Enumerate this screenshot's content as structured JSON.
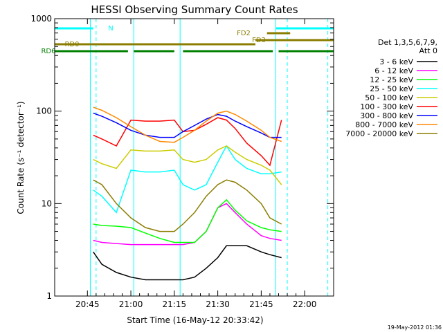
{
  "chart_data": {
    "type": "line",
    "title": "HESSI Observing Summary Count Rates",
    "xlabel": "Start Time (16-May-12 20:33:42)",
    "ylabel": "Count Rate (s⁻¹ detector⁻¹)",
    "y_scale": "log",
    "ylim": [
      1,
      1000
    ],
    "xlim": [
      "20:33:42",
      "22:10:00"
    ],
    "x_ticks": [
      "20:45",
      "21:00",
      "21:15",
      "21:30",
      "21:45",
      "22:00"
    ],
    "y_ticks": [
      "1",
      "10",
      "100",
      "1000"
    ],
    "legend": {
      "title_lines": [
        "Det 1,3,5,6,7,9,",
        "Att 0"
      ],
      "placement": "right"
    },
    "series": [
      {
        "name": "3 - 6 keV",
        "color": "#000000",
        "x": [
          "20:47",
          "20:50",
          "20:55",
          "21:00",
          "21:05",
          "21:10",
          "21:15",
          "21:18",
          "21:22",
          "21:26",
          "21:30",
          "21:33",
          "21:36",
          "21:40",
          "21:45",
          "21:48",
          "21:52"
        ],
        "values": [
          3.0,
          2.2,
          1.8,
          1.6,
          1.5,
          1.5,
          1.5,
          1.5,
          1.6,
          2.0,
          2.6,
          3.5,
          3.5,
          3.5,
          3.0,
          2.8,
          2.6
        ]
      },
      {
        "name": "6 - 12 keV",
        "color": "#ff00ff",
        "x": [
          "20:47",
          "20:50",
          "20:55",
          "21:00",
          "21:05",
          "21:10",
          "21:15",
          "21:18",
          "21:22",
          "21:26",
          "21:30",
          "21:33",
          "21:36",
          "21:40",
          "21:45",
          "21:48",
          "21:52"
        ],
        "values": [
          4.0,
          3.8,
          3.7,
          3.6,
          3.6,
          3.6,
          3.6,
          3.6,
          3.8,
          5.0,
          9.0,
          10.0,
          8.0,
          6.0,
          4.5,
          4.2,
          4.0
        ]
      },
      {
        "name": "12 - 25 keV",
        "color": "#00ff00",
        "x": [
          "20:47",
          "20:50",
          "20:55",
          "21:00",
          "21:05",
          "21:10",
          "21:15",
          "21:18",
          "21:22",
          "21:26",
          "21:30",
          "21:33",
          "21:36",
          "21:40",
          "21:45",
          "21:48",
          "21:52"
        ],
        "values": [
          6.0,
          5.8,
          5.7,
          5.5,
          4.8,
          4.2,
          3.8,
          3.8,
          3.8,
          5.0,
          9.0,
          11.0,
          8.5,
          6.5,
          5.5,
          5.2,
          5.0
        ]
      },
      {
        "name": "25 - 50 keV",
        "color": "#00ffff",
        "x": [
          "20:47",
          "20:50",
          "20:55",
          "21:00",
          "21:05",
          "21:10",
          "21:15",
          "21:18",
          "21:22",
          "21:26",
          "21:30",
          "21:33",
          "21:36",
          "21:40",
          "21:45",
          "21:48",
          "21:52"
        ],
        "values": [
          14.0,
          12.0,
          8.0,
          23.0,
          22.0,
          22.0,
          23.0,
          16.0,
          14.0,
          16.0,
          28.0,
          42.0,
          30.0,
          24.0,
          21.0,
          21.0,
          22.0
        ]
      },
      {
        "name": "50 - 100 keV",
        "color": "#cccc00",
        "x": [
          "20:47",
          "20:50",
          "20:55",
          "21:00",
          "21:05",
          "21:10",
          "21:15",
          "21:18",
          "21:22",
          "21:26",
          "21:30",
          "21:33",
          "21:36",
          "21:40",
          "21:45",
          "21:48",
          "21:52"
        ],
        "values": [
          30.0,
          27.0,
          24.0,
          38.0,
          37.0,
          37.0,
          38.0,
          30.0,
          28.0,
          30.0,
          38.0,
          42.0,
          36.0,
          30.0,
          26.0,
          23.0,
          16.0
        ]
      },
      {
        "name": "100 - 300 keV",
        "color": "#ff0000",
        "x": [
          "20:47",
          "20:50",
          "20:55",
          "21:00",
          "21:05",
          "21:10",
          "21:15",
          "21:18",
          "21:22",
          "21:26",
          "21:30",
          "21:33",
          "21:36",
          "21:40",
          "21:45",
          "21:48",
          "21:52"
        ],
        "values": [
          55.0,
          50.0,
          42.0,
          80.0,
          78.0,
          78.0,
          80.0,
          60.0,
          62.0,
          72.0,
          85.0,
          80.0,
          65.0,
          45.0,
          33.0,
          26.0,
          80.0
        ]
      },
      {
        "name": "300 - 800 keV",
        "color": "#0000ff",
        "x": [
          "20:47",
          "20:50",
          "20:55",
          "21:00",
          "21:05",
          "21:10",
          "21:15",
          "21:18",
          "21:22",
          "21:26",
          "21:30",
          "21:33",
          "21:36",
          "21:40",
          "21:45",
          "21:48",
          "21:52"
        ],
        "values": [
          95.0,
          88.0,
          75.0,
          62.0,
          55.0,
          52.0,
          52.0,
          60.0,
          70.0,
          82.0,
          92.0,
          88.0,
          78.0,
          68.0,
          58.0,
          52.0,
          52.0
        ]
      },
      {
        "name": "800 - 7000 keV",
        "color": "#ff8800",
        "x": [
          "20:47",
          "20:50",
          "20:55",
          "21:00",
          "21:05",
          "21:10",
          "21:15",
          "21:18",
          "21:22",
          "21:26",
          "21:30",
          "21:33",
          "21:36",
          "21:40",
          "21:45",
          "21:48",
          "21:52"
        ],
        "values": [
          110.0,
          102.0,
          85.0,
          68.0,
          55.0,
          47.0,
          46.0,
          52.0,
          62.0,
          78.0,
          95.0,
          100.0,
          92.0,
          78.0,
          62.0,
          52.0,
          47.0
        ]
      },
      {
        "name": "7000 - 20000 keV",
        "color": "#8b7d00",
        "x": [
          "20:47",
          "20:50",
          "20:55",
          "21:00",
          "21:05",
          "21:10",
          "21:15",
          "21:18",
          "21:22",
          "21:26",
          "21:30",
          "21:33",
          "21:36",
          "21:40",
          "21:45",
          "21:48",
          "21:52"
        ],
        "values": [
          18.0,
          16.0,
          10.0,
          7.0,
          5.5,
          5.0,
          5.0,
          6.0,
          8.0,
          12.0,
          16.0,
          18.0,
          17.0,
          14.0,
          10.0,
          7.0,
          6.0
        ]
      }
    ],
    "status_bars": [
      {
        "label": "N",
        "color": "#00ffff",
        "segments": [
          [
            "20:33:42",
            "20:47:00"
          ],
          [
            "21:50:00",
            "22:10:00"
          ]
        ]
      },
      {
        "label": "FD2",
        "color": "#8b7d00",
        "segments": [
          [
            "21:47:00",
            "21:55:00"
          ]
        ]
      },
      {
        "label": "FD3",
        "color": "#8b7d00",
        "segments": [
          [
            "21:43:00",
            "22:10:00"
          ]
        ]
      },
      {
        "label": "RD0",
        "color": "#8b7d00",
        "segments": [
          [
            "20:33:42",
            "21:43:00"
          ]
        ]
      },
      {
        "label": "RD6",
        "color": "#008000",
        "segments": [
          [
            "20:33:42",
            "20:59:00"
          ],
          [
            "21:01:00",
            "21:15:00"
          ],
          [
            "21:18:00",
            "21:49:00"
          ],
          [
            "21:51:00",
            "22:10:00"
          ]
        ]
      }
    ],
    "vertical_lines": {
      "solid_cyan": [
        "20:33:42",
        "20:46:00",
        "21:01:00",
        "21:17:00",
        "21:50:00"
      ],
      "dashed_cyan": [
        "20:48:00",
        "21:54:00",
        "22:08:00"
      ]
    }
  },
  "footer": {
    "date_stamp": "19-May-2012 01:36"
  }
}
